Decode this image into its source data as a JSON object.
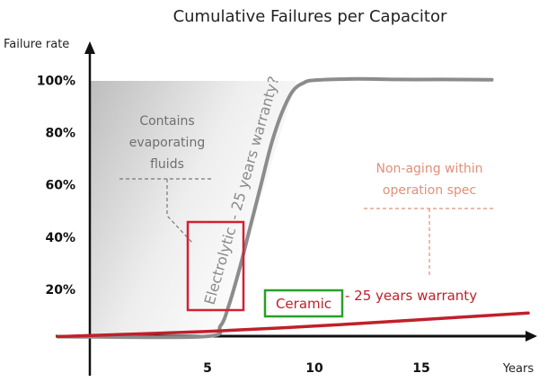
{
  "chart_data": {
    "type": "line",
    "title": "Cumulative Failures per Capacitor",
    "ylabel": "Failure rate",
    "xlabel": "Years",
    "xticks": [
      5,
      10,
      15
    ],
    "yticks": [
      "20%",
      "40%",
      "60%",
      "80%",
      "100%"
    ],
    "xlim": [
      0,
      20
    ],
    "ylim": [
      0,
      105
    ],
    "grid": false,
    "series": [
      {
        "name": "Electrolytic",
        "color": "#8c8c8c",
        "x": [
          -2,
          4.8,
          5.6,
          6.0,
          6.5,
          7.0,
          7.5,
          8.0,
          8.5,
          9.0,
          9.5,
          10.0,
          12,
          14,
          16,
          18.3
        ],
        "y": [
          2,
          2,
          6,
          14,
          28,
          44,
          60,
          76,
          88,
          96,
          99,
          100,
          100.5,
          100.3,
          100.3,
          100.2
        ]
      },
      {
        "name": "Ceramic",
        "color": "#c0202a",
        "x": [
          -2,
          5,
          10,
          15,
          20
        ],
        "y": [
          2,
          4,
          6,
          8.5,
          11
        ]
      }
    ],
    "annotations": {
      "evaporating": [
        "Contains",
        "evaporating",
        "fluids"
      ],
      "nonaging": [
        "Non-aging within",
        "operation spec"
      ],
      "electrolytic_warranty": "- 25 years warranty?",
      "ceramic_warranty": "- 25 years warranty"
    }
  },
  "colors": {
    "axis": "#111111",
    "electrolytic": "#8c8c8c",
    "ceramic": "#c0202a",
    "electrolytic_box": "#d42030",
    "ceramic_box": "#2aa02a",
    "orange_text": "#e0907a"
  }
}
